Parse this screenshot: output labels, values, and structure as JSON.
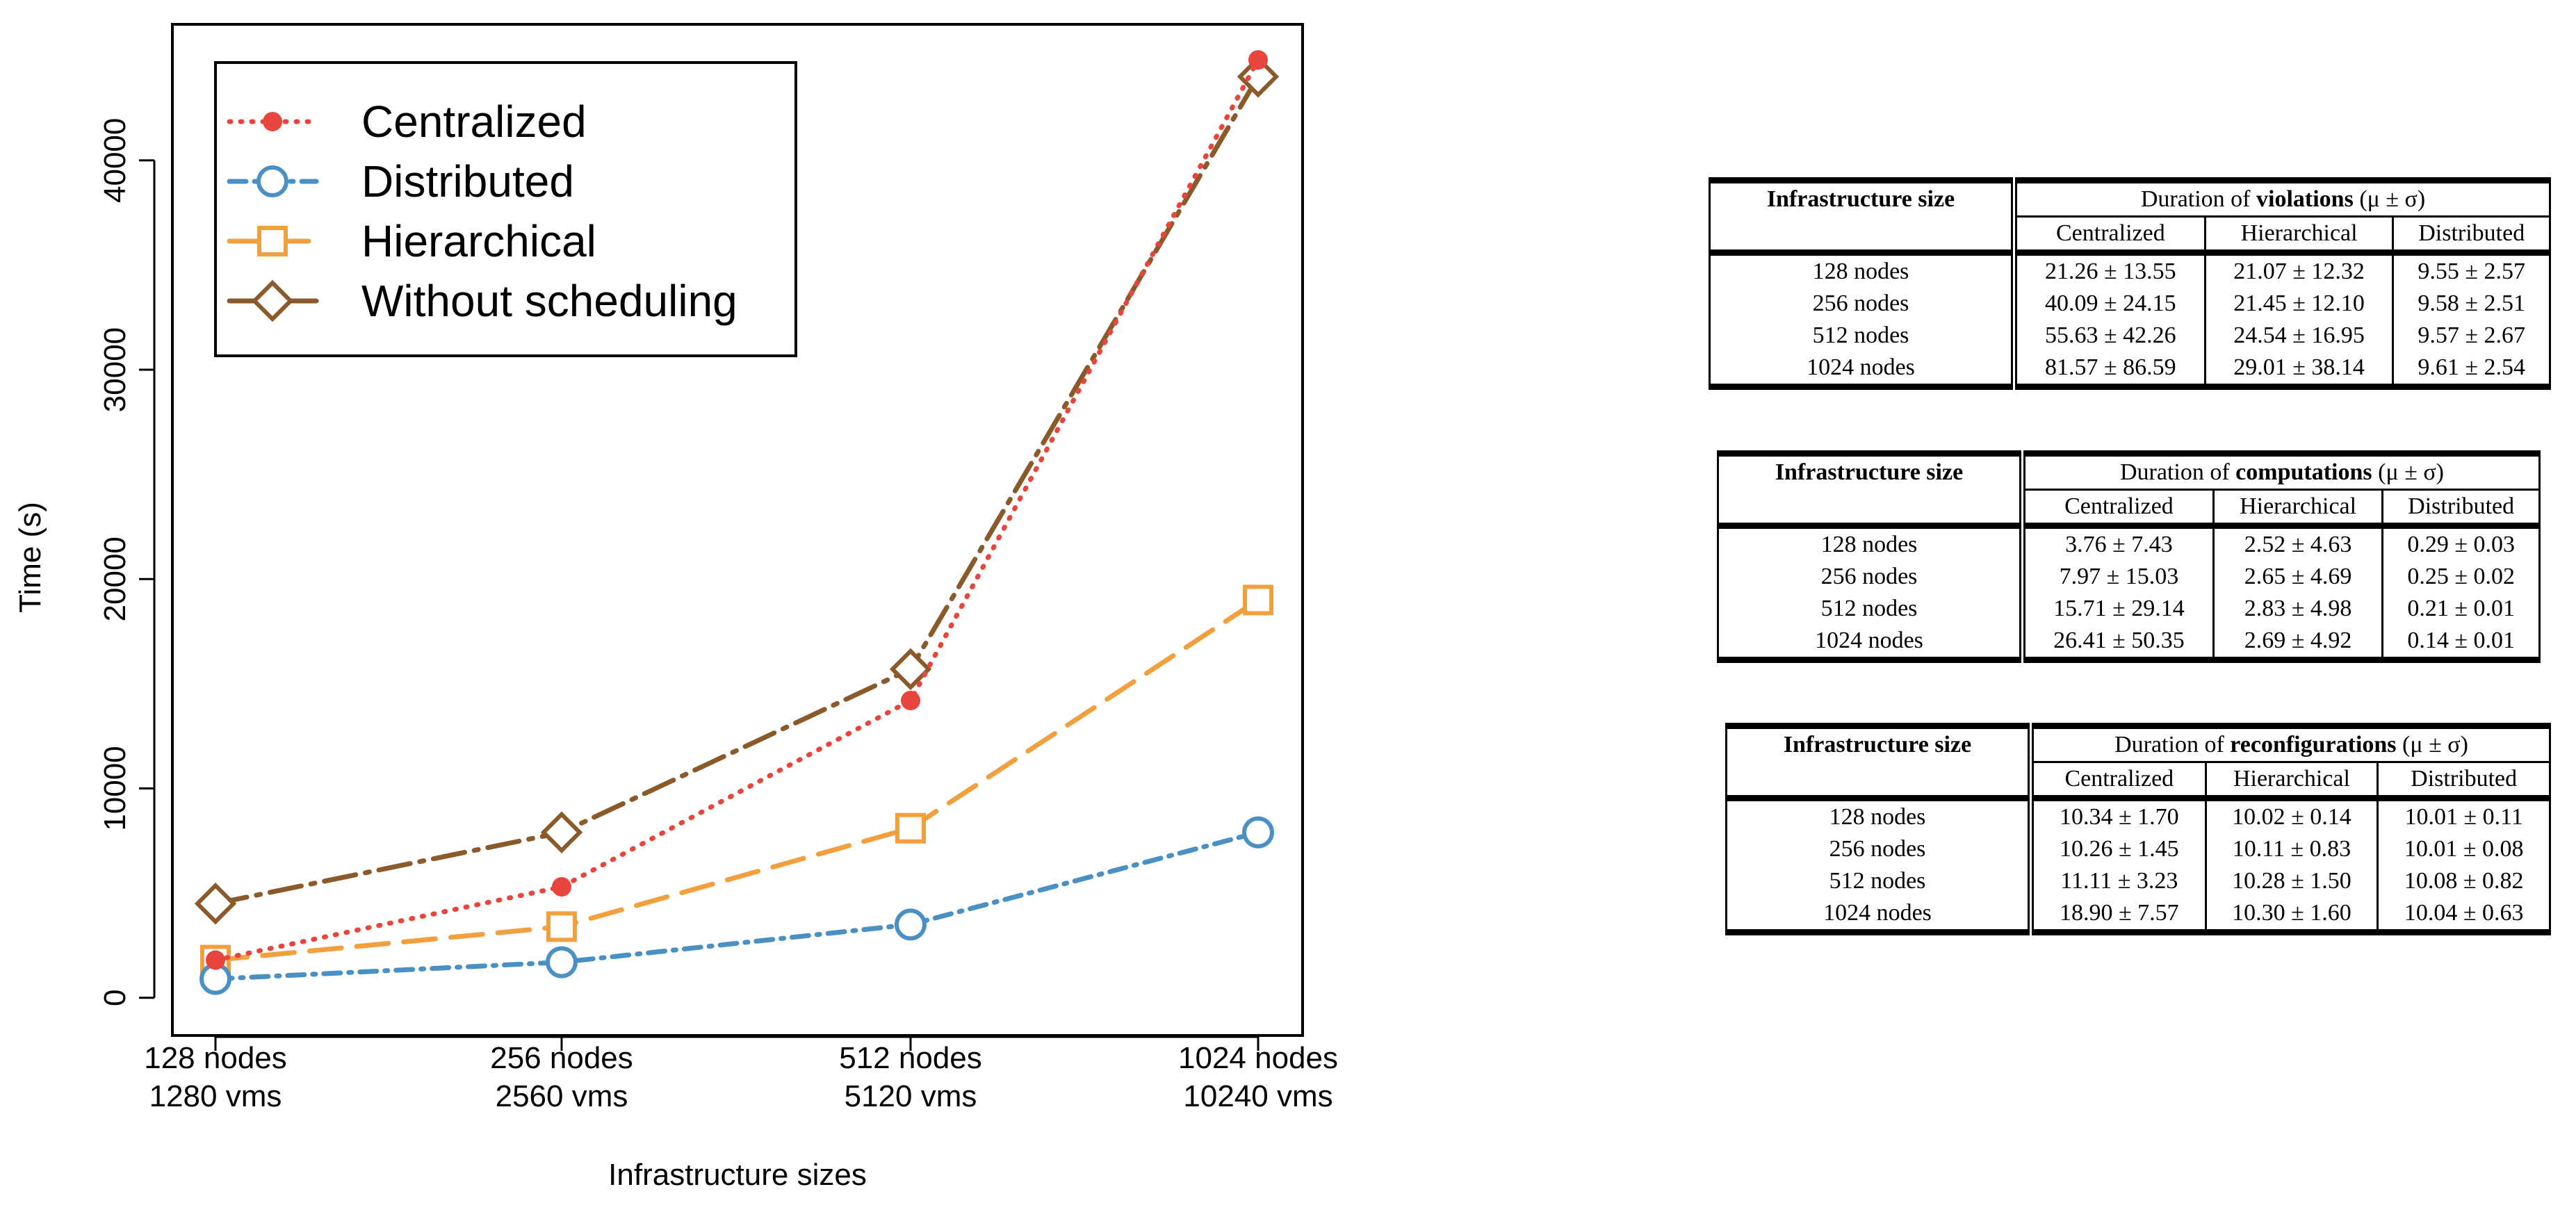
{
  "chart_data": {
    "type": "line",
    "xlabel": "Infrastructure sizes",
    "ylabel": "Time (s)",
    "ylim": [
      -1800,
      46500
    ],
    "yticks": [
      0,
      10000,
      20000,
      30000,
      40000
    ],
    "categories": [
      {
        "line1": "128 nodes",
        "line2": "1280 vms"
      },
      {
        "line1": "256 nodes",
        "line2": "2560 vms"
      },
      {
        "line1": "512 nodes",
        "line2": "5120 vms"
      },
      {
        "line1": "1024 nodes",
        "line2": "10240 vms"
      }
    ],
    "legend_position": "top-left",
    "series": [
      {
        "name": "Centralized",
        "values": [
          1800,
          5300,
          14200,
          44800
        ],
        "color": "#e8453c",
        "dash": "dotted",
        "marker": "dot"
      },
      {
        "name": "Distributed",
        "values": [
          900,
          1700,
          3500,
          7900
        ],
        "color": "#4a90c2",
        "dash": "dashdot",
        "marker": "circle"
      },
      {
        "name": "Hierarchical",
        "values": [
          1800,
          3400,
          8100,
          19000
        ],
        "color": "#f2a03d",
        "dash": "dashed",
        "marker": "square"
      },
      {
        "name": "Without scheduling",
        "values": [
          4500,
          7900,
          15700,
          44000
        ],
        "color": "#8b5a2b",
        "dash": "longdashdot",
        "marker": "diamond"
      }
    ]
  },
  "tables": [
    {
      "header": "Infrastructure size",
      "caption_prefix": "Duration of",
      "caption_bold": "violations",
      "caption_suffix": "(μ ± σ)",
      "columns": [
        "Centralized",
        "Hierarchical",
        "Distributed"
      ],
      "rows": [
        {
          "label": "128 nodes",
          "cells": [
            "21.26 ± 13.55",
            "21.07 ± 12.32",
            "9.55 ± 2.57"
          ]
        },
        {
          "label": "256 nodes",
          "cells": [
            "40.09 ± 24.15",
            "21.45 ± 12.10",
            "9.58 ± 2.51"
          ]
        },
        {
          "label": "512 nodes",
          "cells": [
            "55.63 ± 42.26",
            "24.54 ± 16.95",
            "9.57 ± 2.67"
          ]
        },
        {
          "label": "1024 nodes",
          "cells": [
            "81.57 ± 86.59",
            "29.01 ± 38.14",
            "9.61 ± 2.54"
          ]
        }
      ]
    },
    {
      "header": "Infrastructure size",
      "caption_prefix": "Duration of",
      "caption_bold": "computations",
      "caption_suffix": "(μ ± σ)",
      "columns": [
        "Centralized",
        "Hierarchical",
        "Distributed"
      ],
      "rows": [
        {
          "label": "128 nodes",
          "cells": [
            "3.76 ± 7.43",
            "2.52 ± 4.63",
            "0.29 ± 0.03"
          ]
        },
        {
          "label": "256 nodes",
          "cells": [
            "7.97 ± 15.03",
            "2.65 ± 4.69",
            "0.25 ± 0.02"
          ]
        },
        {
          "label": "512 nodes",
          "cells": [
            "15.71 ± 29.14",
            "2.83 ± 4.98",
            "0.21 ± 0.01"
          ]
        },
        {
          "label": "1024 nodes",
          "cells": [
            "26.41 ± 50.35",
            "2.69 ± 4.92",
            "0.14 ± 0.01"
          ]
        }
      ]
    },
    {
      "header": "Infrastructure size",
      "caption_prefix": "Duration of",
      "caption_bold": "reconfigurations",
      "caption_suffix": "(μ ± σ)",
      "columns": [
        "Centralized",
        "Hierarchical",
        "Distributed"
      ],
      "rows": [
        {
          "label": "128 nodes",
          "cells": [
            "10.34 ± 1.70",
            "10.02 ± 0.14",
            "10.01 ± 0.11"
          ]
        },
        {
          "label": "256 nodes",
          "cells": [
            "10.26 ± 1.45",
            "10.11 ± 0.83",
            "10.01 ± 0.08"
          ]
        },
        {
          "label": "512 nodes",
          "cells": [
            "11.11 ± 3.23",
            "10.28 ± 1.50",
            "10.08 ± 0.82"
          ]
        },
        {
          "label": "1024 nodes",
          "cells": [
            "18.90 ± 7.57",
            "10.30 ± 1.60",
            "10.04 ± 0.63"
          ]
        }
      ]
    }
  ]
}
